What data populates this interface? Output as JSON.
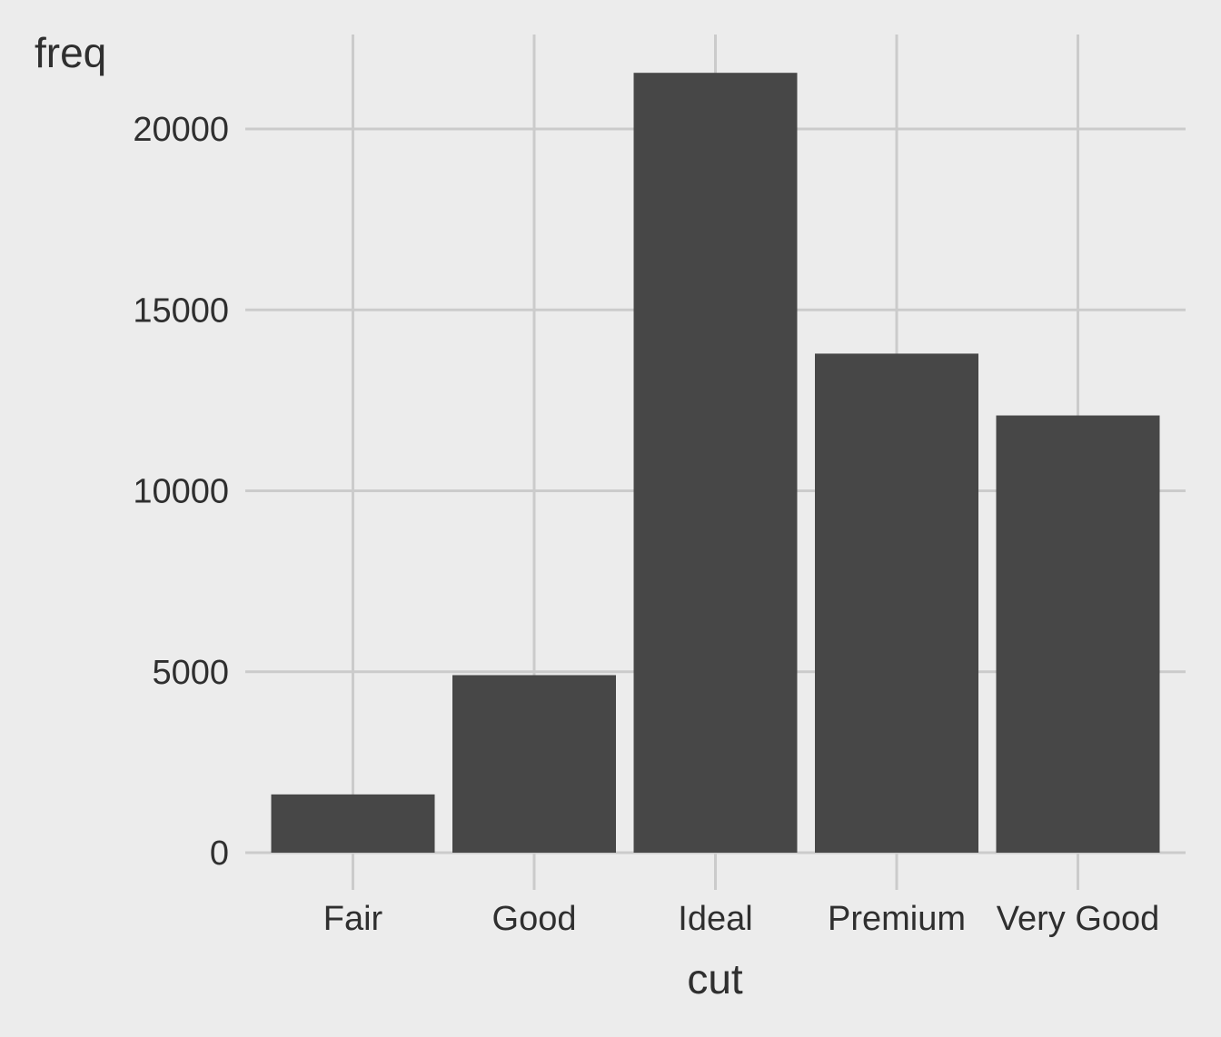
{
  "chart_data": {
    "type": "bar",
    "categories": [
      "Fair",
      "Good",
      "Ideal",
      "Premium",
      "Very Good"
    ],
    "values": [
      1610,
      4906,
      21551,
      13791,
      12082
    ],
    "xlabel": "cut",
    "ylabel": "freq",
    "ylim": [
      0,
      22000
    ],
    "yticks": [
      0,
      5000,
      10000,
      15000,
      20000
    ],
    "ytick_labels": [
      "0",
      "5000",
      "10000",
      "15000",
      "20000"
    ],
    "grid": true,
    "legend": "none",
    "colors": {
      "background": "#ececec",
      "bar": "#474747",
      "grid": "#cbcbcb",
      "text": "#2f2f2f"
    }
  }
}
